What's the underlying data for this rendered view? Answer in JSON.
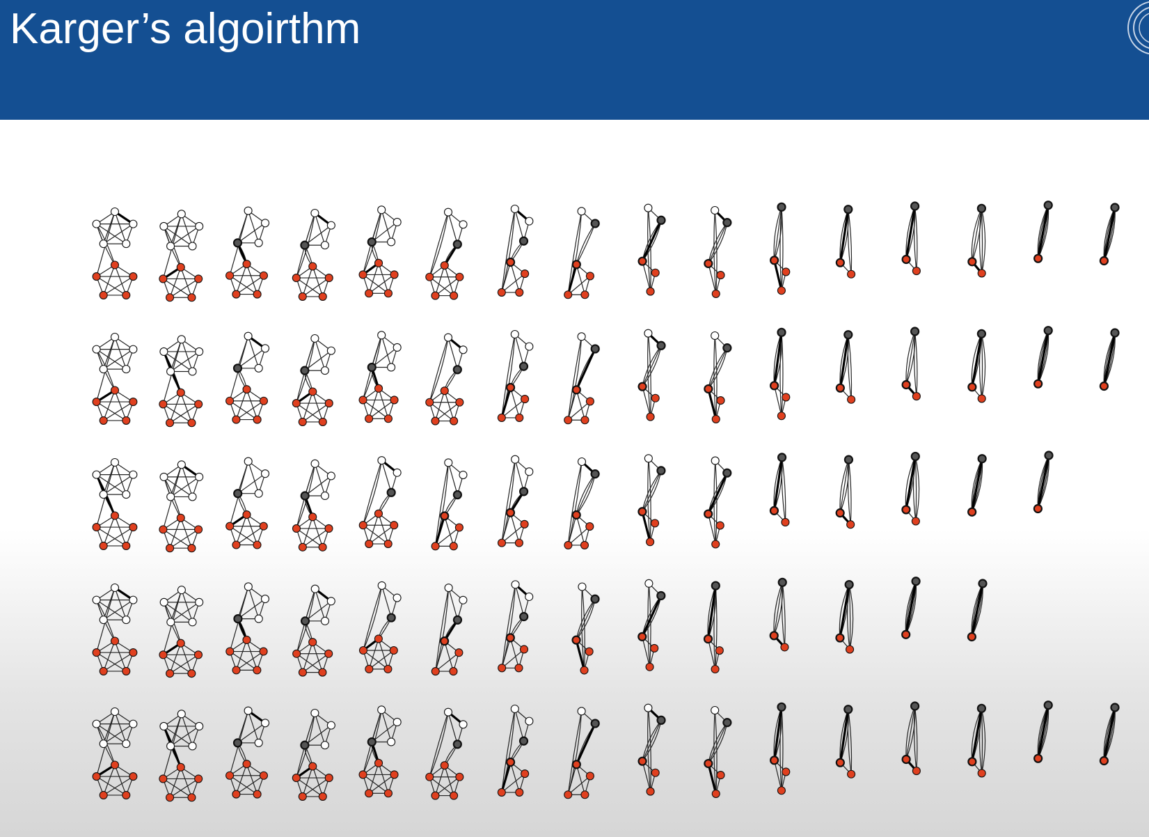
{
  "slide": {
    "title": "Karger’s algoirthm"
  },
  "logo": {
    "name": "university-seal-logo"
  },
  "colors": {
    "header_bg": "#144f92",
    "title_text": "#ffffff",
    "node_fill_white": "#ffffff",
    "node_fill_red": "#e0401f",
    "node_fill_merged": "#555555",
    "edge": "#222222"
  },
  "diagram": {
    "description_kind": "graph-contraction-sequences",
    "rows": [
      {
        "steps": 16
      },
      {
        "steps": 16
      },
      {
        "steps": 15
      },
      {
        "steps": 14
      },
      {
        "steps": 16
      }
    ]
  }
}
